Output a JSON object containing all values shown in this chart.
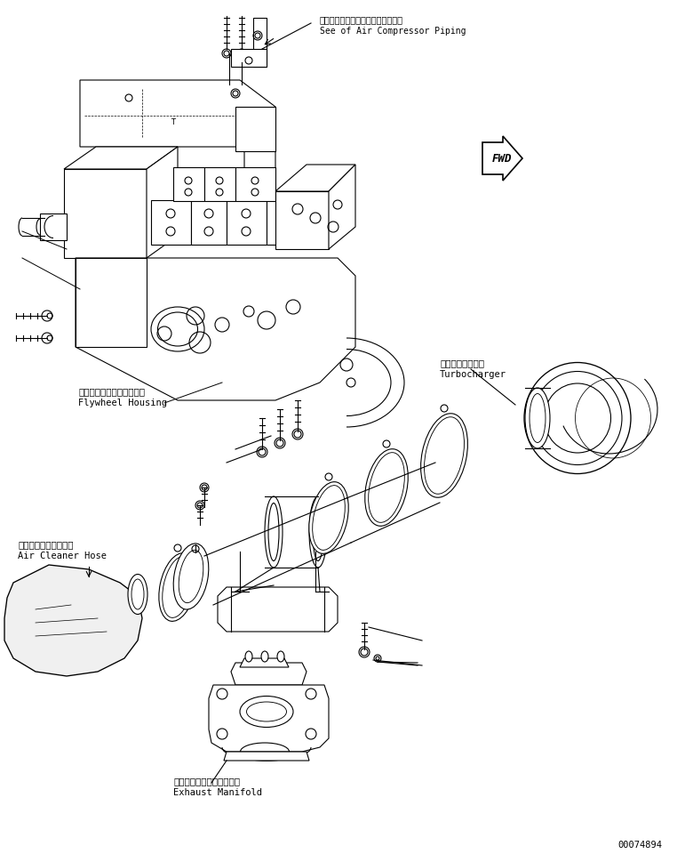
{
  "bg_color": "#ffffff",
  "line_color": "#000000",
  "fig_width": 7.62,
  "fig_height": 9.6,
  "dpi": 100,
  "part_number": "00074894",
  "labels": {
    "air_compressor_jp": "エアーコンプレッサパイピング参図",
    "air_compressor_en": "See of Air Compressor Piping",
    "flywheel_jp": "フライホイールハウジング",
    "flywheel_en": "Flywheel Housing",
    "turbocharger_jp": "ターボチャージャ",
    "turbocharger_en": "Turbocharger",
    "air_cleaner_jp": "エアークリーナホース",
    "air_cleaner_en": "Air Cleaner Hose",
    "exhaust_jp": "エキゾーストマニホールド",
    "exhaust_en": "Exhaust Manifold",
    "fwd": "FWD"
  }
}
